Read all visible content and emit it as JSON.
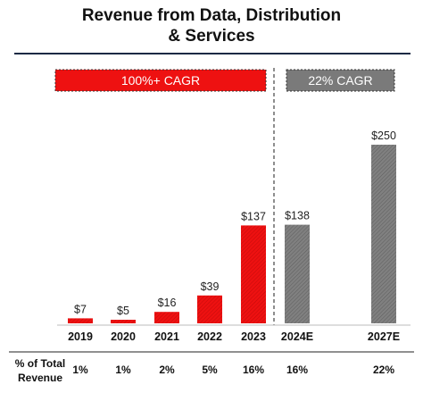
{
  "title": {
    "line1": "Revenue from Data, Distribution",
    "line2": "& Services"
  },
  "colors": {
    "actual": "#ee1111",
    "estimate": "#7a7a7a",
    "title_rule": "#1b2a44"
  },
  "cagr_boxes": [
    {
      "label": "100%+ CAGR",
      "color": "#ee1111",
      "span": [
        "2019",
        "2023"
      ]
    },
    {
      "label": "22% CAGR",
      "color": "#7a7a7a",
      "span": [
        "2024E",
        "2027E"
      ]
    }
  ],
  "table_row": {
    "label_line1": "% of Total",
    "label_line2": "Revenue"
  },
  "chart_data": {
    "type": "bar",
    "title": "Revenue from Data, Distribution & Services",
    "categories": [
      "2019",
      "2020",
      "2021",
      "2022",
      "2023",
      "2024E",
      "2027E"
    ],
    "values": [
      7,
      5,
      16,
      39,
      137,
      138,
      250
    ],
    "value_labels": [
      "$7",
      "$5",
      "$16",
      "$39",
      "$137",
      "$138",
      "$250"
    ],
    "bar_kind": [
      "actual",
      "actual",
      "actual",
      "actual",
      "actual",
      "estimate",
      "estimate"
    ],
    "percent_of_total_revenue": [
      "1%",
      "1%",
      "2%",
      "5%",
      "16%",
      "16%",
      "22%"
    ],
    "ylim": [
      0,
      250
    ],
    "grid": false,
    "legend": "none"
  }
}
